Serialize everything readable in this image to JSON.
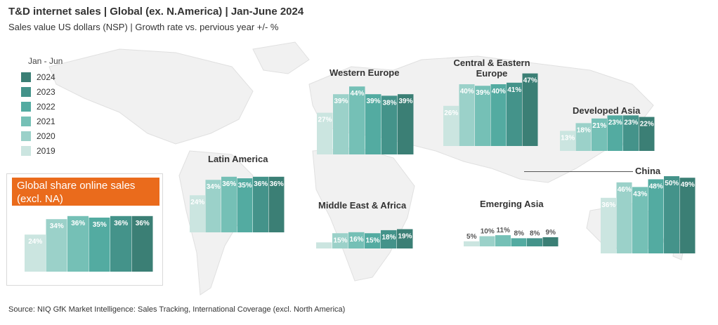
{
  "title": "T&D internet sales | Global (ex. N.America) | Jan-June 2024",
  "subtitle": "Sales value US dollars (NSP) | Growth rate vs. pervious year +/- %",
  "source": "Source: NIQ GfK Market Intelligence: Sales Tracking, International Coverage (excl. North America)",
  "legend": {
    "title": "Jan - Jun",
    "items": [
      {
        "label": "2024",
        "color": "#3b7f75"
      },
      {
        "label": "2023",
        "color": "#44938a"
      },
      {
        "label": "2022",
        "color": "#53aba1"
      },
      {
        "label": "2021",
        "color": "#75c0b6"
      },
      {
        "label": "2020",
        "color": "#9bd1c9"
      },
      {
        "label": "2019",
        "color": "#cbe5e0"
      }
    ]
  },
  "global_box": {
    "header_line1": "Global share online sales",
    "header_line2": "(excl. NA)"
  },
  "chart_data": [
    {
      "type": "bar",
      "title": "Global share online sales (excl. NA)",
      "categories": [
        "2019",
        "2020",
        "2021",
        "2022",
        "2023",
        "2024"
      ],
      "values": [
        24,
        34,
        36,
        35,
        36,
        36
      ],
      "labels": [
        "24%",
        "34%",
        "36%",
        "35%",
        "36%",
        "36%"
      ]
    },
    {
      "type": "bar",
      "title": "Latin America",
      "categories": [
        "2019",
        "2020",
        "2021",
        "2022",
        "2023",
        "2024"
      ],
      "values": [
        24,
        34,
        36,
        35,
        36,
        36
      ],
      "labels": [
        "24%",
        "34%",
        "36%",
        "35%",
        "36%",
        "36%"
      ]
    },
    {
      "type": "bar",
      "title": "Western Europe",
      "categories": [
        "2019",
        "2020",
        "2021",
        "2022",
        "2023",
        "2024"
      ],
      "values": [
        27,
        39,
        44,
        39,
        38,
        39
      ],
      "labels": [
        "27%",
        "39%",
        "44%",
        "39%",
        "38%",
        "39%"
      ]
    },
    {
      "type": "bar",
      "title": "Central & Eastern Europe",
      "categories": [
        "2019",
        "2020",
        "2021",
        "2022",
        "2023",
        "2024"
      ],
      "values": [
        26,
        40,
        39,
        40,
        41,
        47
      ],
      "labels": [
        "26%",
        "40%",
        "39%",
        "40%",
        "41%",
        "47%"
      ]
    },
    {
      "type": "bar",
      "title": "Developed Asia",
      "categories": [
        "2019",
        "2020",
        "2021",
        "2022",
        "2023",
        "2024"
      ],
      "values": [
        13,
        18,
        21,
        23,
        23,
        22
      ],
      "labels": [
        "13%",
        "18%",
        "21%",
        "23%",
        "23%",
        "22%"
      ]
    },
    {
      "type": "bar",
      "title": "Middle East & Africa",
      "categories": [
        "2019",
        "2020",
        "2021",
        "2022",
        "2023",
        "2024"
      ],
      "values": [
        6,
        15,
        16,
        15,
        18,
        19
      ],
      "labels": [
        "",
        "15%",
        "16%",
        "15%",
        "18%",
        "19%"
      ]
    },
    {
      "type": "bar",
      "title": "Emerging Asia",
      "categories": [
        "2019",
        "2020",
        "2021",
        "2022",
        "2023",
        "2024"
      ],
      "values": [
        5,
        10,
        11,
        8,
        8,
        9
      ],
      "labels": [
        "5%",
        "10%",
        "11%",
        "8%",
        "8%",
        "9%"
      ]
    },
    {
      "type": "bar",
      "title": "China",
      "categories": [
        "2019",
        "2020",
        "2021",
        "2022",
        "2023",
        "2024"
      ],
      "values": [
        36,
        46,
        43,
        48,
        50,
        49
      ],
      "labels": [
        "36%",
        "46%",
        "43%",
        "48%",
        "50%",
        "49%"
      ]
    }
  ]
}
